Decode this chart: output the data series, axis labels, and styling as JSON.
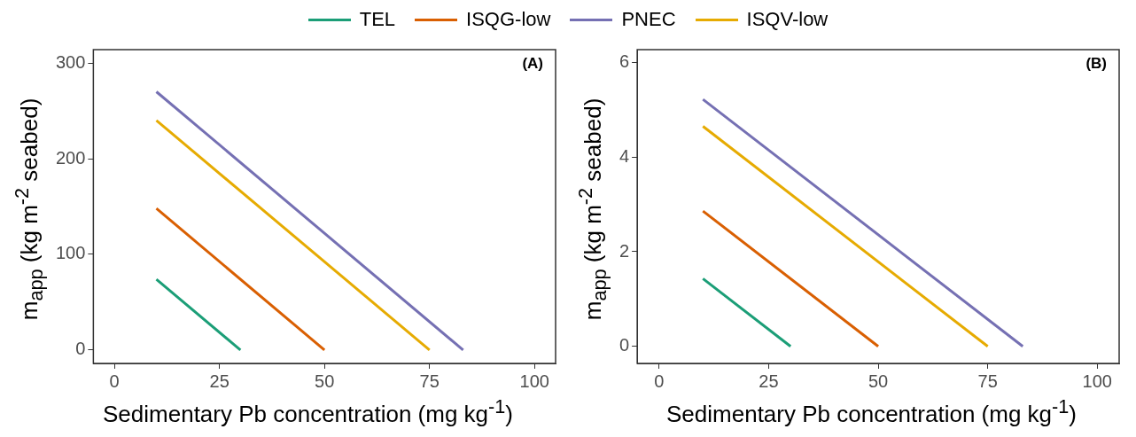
{
  "chart_data": [
    {
      "type": "line",
      "xlabel": "Sedimentary Pb concentration (mg kg$^{-1}$)",
      "ylabel": "m$_{app}$ (kg m$^{-2}$ seabed)",
      "annotations": [
        "(A)"
      ],
      "legend": "top",
      "grid": false,
      "xlim": [
        -5,
        105
      ],
      "xticks": [
        0,
        25,
        50,
        75,
        100
      ],
      "ylim": [
        -14,
        314
      ],
      "yticks": [
        0,
        100,
        200,
        300
      ],
      "series": [
        {
          "name": "TEL",
          "color": "#1b9e77",
          "x": [
            10,
            30
          ],
          "values": [
            74,
            0
          ]
        },
        {
          "name": "ISQG-low",
          "color": "#d95f02",
          "x": [
            10,
            50
          ],
          "values": [
            148,
            0
          ]
        },
        {
          "name": "PNEC",
          "color": "#7570b3",
          "x": [
            10,
            83
          ],
          "values": [
            270,
            0
          ]
        },
        {
          "name": "ISQV-low",
          "color": "#e6ab02",
          "x": [
            10,
            75
          ],
          "values": [
            240,
            0
          ]
        }
      ]
    },
    {
      "type": "line",
      "xlabel": "Sedimentary Pb concentration (mg kg$^{-1}$)",
      "ylabel": "m$_{app}$ (kg m$^{-2}$ seabed)",
      "annotations": [
        "(B)"
      ],
      "grid": false,
      "xlim": [
        -5,
        105
      ],
      "xticks": [
        0,
        25,
        50,
        75,
        100
      ],
      "ylim": [
        -0.36,
        6.27
      ],
      "yticks": [
        0,
        2,
        4,
        6
      ],
      "series": [
        {
          "color": "#1b9e77",
          "x": [
            10,
            30
          ],
          "values": [
            1.43,
            0
          ]
        },
        {
          "color": "#d95f02",
          "x": [
            10,
            50
          ],
          "values": [
            2.86,
            0
          ]
        },
        {
          "color": "#7570b3",
          "x": [
            10,
            83
          ],
          "values": [
            5.22,
            0
          ]
        },
        {
          "color": "#e6ab02",
          "x": [
            10,
            75
          ],
          "values": [
            4.65,
            0
          ]
        }
      ]
    }
  ]
}
